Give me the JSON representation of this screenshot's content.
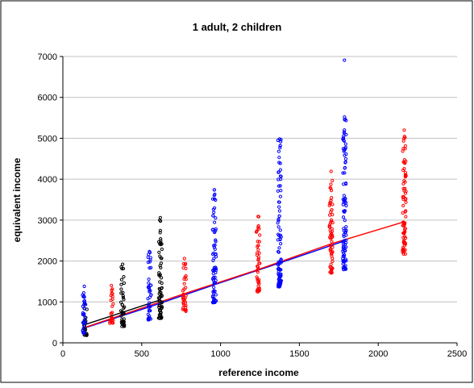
{
  "chart_data": {
    "type": "scatter",
    "title": "1 adult, 2 children",
    "xlabel": "reference income",
    "ylabel": "equivalent income",
    "xlim": [
      0,
      2500
    ],
    "ylim": [
      0,
      7000
    ],
    "x_ticks": [
      0,
      500,
      1000,
      1500,
      2000,
      2500
    ],
    "y_ticks": [
      0,
      1000,
      2000,
      3000,
      4000,
      5000,
      6000,
      7000
    ],
    "grid": "horizontal",
    "legend": "none",
    "colors": {
      "black": "#000000",
      "blue": "#0000ff",
      "red": "#ff0000",
      "grid": "#c0c0c0"
    },
    "series": [
      {
        "color": "#000000",
        "x": [
          143,
          379,
          618
        ],
        "ymin": [
          180,
          400,
          600
        ],
        "ymax": [
          960,
          1920,
          3060
        ],
        "outliers": [
          [
            618,
            3060
          ],
          [
            379,
            1920
          ]
        ]
      },
      {
        "color": "#0000ff",
        "x": [
          136,
          549,
          961,
          1374,
          1786
        ],
        "ymin": [
          230,
          560,
          980,
          1370,
          1790
        ],
        "ymax": [
          1380,
          2230,
          3740,
          4980,
          5520
        ],
        "outliers": [
          [
            136,
            1380
          ],
          [
            549,
            2230
          ],
          [
            961,
            3740
          ],
          [
            1374,
            4980
          ],
          [
            1786,
            6910
          ],
          [
            1786,
            5520
          ]
        ]
      },
      {
        "color": "#ff0000",
        "x": [
          308,
          771,
          1238,
          1701,
          2165
        ],
        "ymin": [
          480,
          770,
          1240,
          1710,
          2170
        ],
        "ymax": [
          1400,
          2060,
          3090,
          4190,
          5200
        ],
        "outliers": [
          [
            308,
            1400
          ],
          [
            771,
            2060
          ],
          [
            1238,
            3090
          ],
          [
            1701,
            4190
          ],
          [
            2165,
            5200
          ]
        ]
      }
    ],
    "lines": [
      {
        "color": "#000000",
        "points": [
          [
            143,
            450
          ],
          [
            618,
            1050
          ]
        ]
      },
      {
        "color": "#0000ff",
        "points": [
          [
            136,
            360
          ],
          [
            549,
            880
          ],
          [
            961,
            1420
          ],
          [
            1374,
            1950
          ],
          [
            1786,
            2490
          ]
        ]
      },
      {
        "color": "#ff0000",
        "points": [
          [
            143,
            380
          ],
          [
            771,
            1200
          ],
          [
            1238,
            1790
          ],
          [
            1701,
            2420
          ],
          [
            2165,
            2960
          ]
        ]
      }
    ]
  }
}
